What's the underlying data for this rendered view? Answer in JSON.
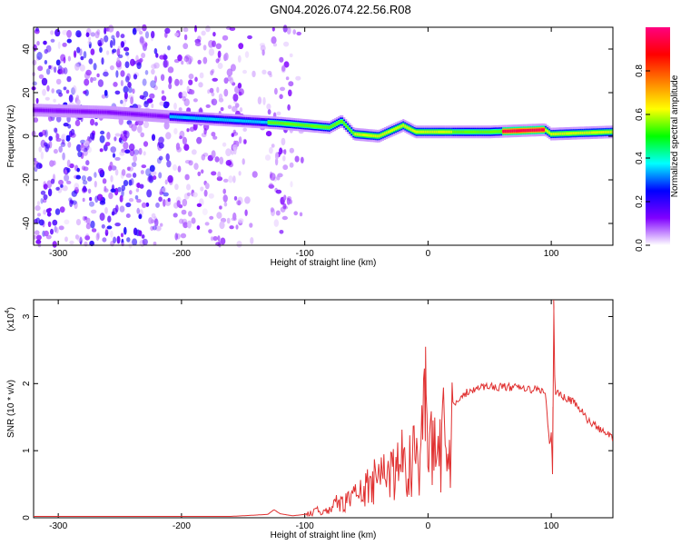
{
  "figure_title": "GN04.2026.074.22.56.R08",
  "chart_data": [
    {
      "type": "heatmap",
      "title": "GN04.2026.074.22.56.R08",
      "xlabel": "Height of straight line (km)",
      "ylabel": "Frequency (Hz)",
      "xlim": [
        -320,
        150
      ],
      "ylim": [
        -50,
        50
      ],
      "x_ticks": [
        -300,
        -200,
        -100,
        0,
        100
      ],
      "y_ticks": [
        -40,
        -20,
        0,
        20,
        40
      ],
      "colorbar": {
        "label": "Normalized spectral amplitude",
        "range": [
          0.0,
          1.0
        ],
        "ticks": [
          0.0,
          0.2,
          0.4,
          0.6,
          0.8
        ],
        "tick_labels": [
          "0.0",
          "0.2",
          "0.4",
          "0.6",
          "0.8"
        ],
        "colormap": [
          "#ffffff",
          "#8000ff",
          "#0000ff",
          "#00ffff",
          "#00ff00",
          "#ffff00",
          "#ff8000",
          "#ff0000",
          "#ff0080"
        ]
      },
      "ridge": {
        "description_points": [
          {
            "x": -320,
            "freq": 12
          },
          {
            "x": -260,
            "freq": 11
          },
          {
            "x": -210,
            "freq": 9
          },
          {
            "x": -150,
            "freq": 7
          },
          {
            "x": -120,
            "freq": 6
          },
          {
            "x": -100,
            "freq": 5
          },
          {
            "x": -80,
            "freq": 4
          },
          {
            "x": -70,
            "freq": 7
          },
          {
            "x": -60,
            "freq": 1
          },
          {
            "x": -40,
            "freq": 0
          },
          {
            "x": -20,
            "freq": 5
          },
          {
            "x": -10,
            "freq": 2
          },
          {
            "x": 0,
            "freq": 2
          },
          {
            "x": 50,
            "freq": 2
          },
          {
            "x": 95,
            "freq": 3
          },
          {
            "x": 100,
            "freq": 1
          },
          {
            "x": 150,
            "freq": 2
          }
        ],
        "peak_amplitude_region": [
          60,
          95
        ]
      }
    },
    {
      "type": "line",
      "xlabel": "Height of straight line (km)",
      "ylabel": "SNR (10 * v/v)",
      "y_multiplier_label": "(x10",
      "y_multiplier_exp": "4",
      "xlim": [
        -320,
        150
      ],
      "ylim": [
        0,
        3.25
      ],
      "x_ticks": [
        -300,
        -200,
        -100,
        0,
        100
      ],
      "y_ticks": [
        0,
        1,
        2,
        3
      ],
      "color": "#e03030",
      "x": [
        -320,
        -200,
        -160,
        -130,
        -125,
        -120,
        -110,
        -100,
        -90,
        -80,
        -70,
        -60,
        -50,
        -40,
        -30,
        -20,
        -10,
        -5,
        -2,
        0,
        10,
        20,
        30,
        40,
        50,
        60,
        70,
        80,
        90,
        95,
        99,
        100,
        101,
        102,
        103,
        105,
        110,
        120,
        130,
        140,
        150
      ],
      "values": [
        0.02,
        0.02,
        0.02,
        0.05,
        0.12,
        0.06,
        0.03,
        0.05,
        0.12,
        0.2,
        0.3,
        0.4,
        0.55,
        0.7,
        0.9,
        1.05,
        1.2,
        1.3,
        2.55,
        1.1,
        1.45,
        1.7,
        1.85,
        1.95,
        1.96,
        1.95,
        1.94,
        1.92,
        1.9,
        1.9,
        1.0,
        1.3,
        0.65,
        3.25,
        1.85,
        1.85,
        1.8,
        1.7,
        1.45,
        1.3,
        1.2
      ]
    }
  ]
}
